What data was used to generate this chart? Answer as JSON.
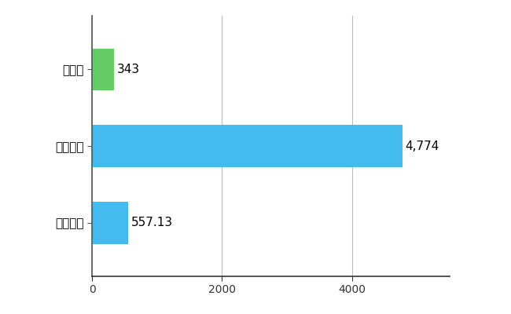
{
  "categories": [
    "岐阜県",
    "全国最大",
    "全国平均"
  ],
  "values": [
    343,
    4774,
    557.13
  ],
  "bar_colors": [
    "#66cc66",
    "#44bbee",
    "#44bbee"
  ],
  "value_labels": [
    "343",
    "4,774",
    "557.13"
  ],
  "xlim": [
    0,
    5500
  ],
  "xticks": [
    0,
    2000,
    4000
  ],
  "background_color": "#ffffff",
  "grid_color": "#bbbbbb",
  "bar_height": 0.55,
  "label_fontsize": 11,
  "tick_fontsize": 10,
  "value_label_fontsize": 11
}
